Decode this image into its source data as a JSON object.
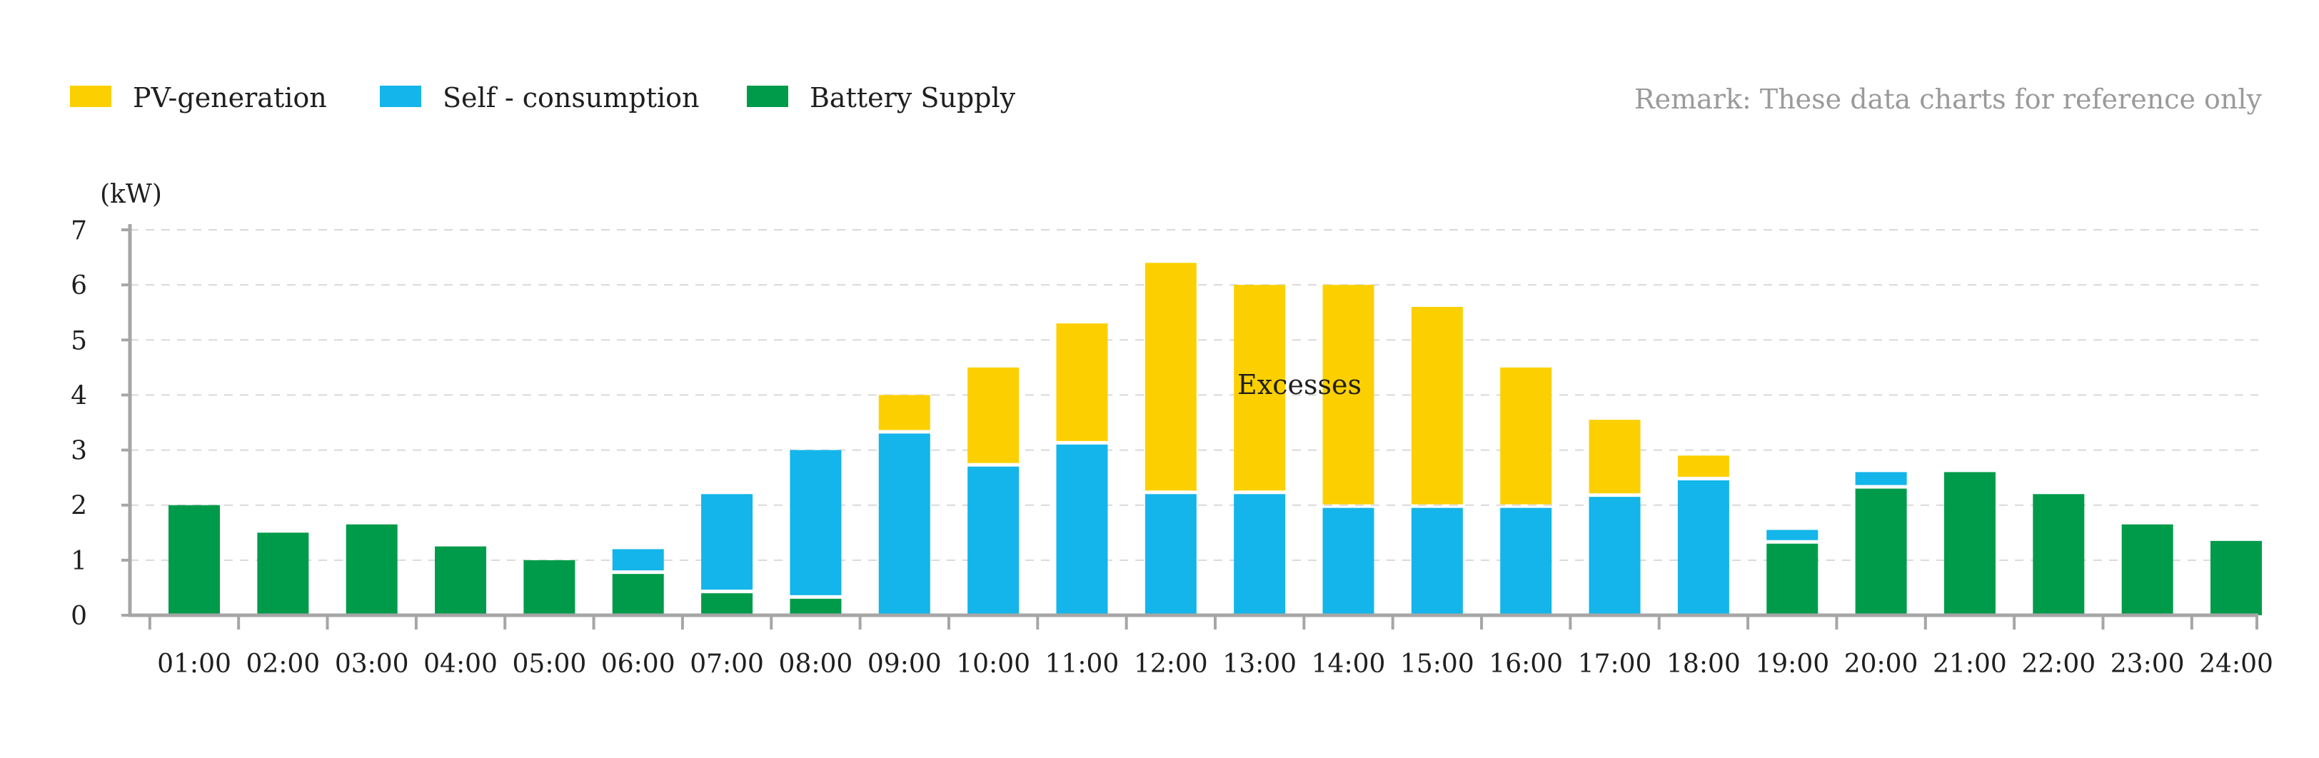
{
  "legend": {
    "items": [
      {
        "label": "PV-generation",
        "color": "#FCD000"
      },
      {
        "label": "Self - consumption",
        "color": "#13B5EA"
      },
      {
        "label": "Battery Supply",
        "color": "#009B4A"
      }
    ]
  },
  "remark": "Remark:  These data charts  for reference only",
  "chart_data": {
    "type": "bar",
    "stacked": true,
    "unit": "(kW)",
    "annotation": "Excesses",
    "categories": [
      "01:00",
      "02:00",
      "03:00",
      "04:00",
      "05:00",
      "06:00",
      "07:00",
      "08:00",
      "09:00",
      "10:00",
      "11:00",
      "12:00",
      "13:00",
      "14:00",
      "15:00",
      "16:00",
      "17:00",
      "18:00",
      "19:00",
      "20:00",
      "21:00",
      "22:00",
      "23:00",
      "24:00"
    ],
    "ylim": [
      0,
      7
    ],
    "yticks": [
      0,
      1,
      2,
      3,
      4,
      5,
      6,
      7
    ],
    "grid": true,
    "legend_position": "top-left",
    "series": [
      {
        "name": "Battery Supply",
        "color": "#009B4A",
        "values": [
          2.0,
          1.5,
          1.65,
          1.25,
          1.0,
          0.75,
          0.4,
          0.3,
          0,
          0,
          0,
          0,
          0,
          0,
          0,
          0,
          0,
          0,
          1.3,
          2.3,
          2.6,
          2.2,
          1.65,
          1.35
        ]
      },
      {
        "name": "Self - consumption",
        "color": "#13B5EA",
        "values": [
          0,
          0,
          0,
          0,
          0,
          0.45,
          1.8,
          2.7,
          3.3,
          2.7,
          3.1,
          2.2,
          2.2,
          1.95,
          1.95,
          1.95,
          2.15,
          2.45,
          0.25,
          0.3,
          0,
          0,
          0,
          0
        ]
      },
      {
        "name": "PV-generation",
        "color": "#FCD000",
        "values": [
          0,
          0,
          0,
          0,
          0,
          0,
          0,
          0,
          0.7,
          1.8,
          2.2,
          4.2,
          3.8,
          4.05,
          3.65,
          2.55,
          1.4,
          0.45,
          0,
          0,
          0,
          0,
          0,
          0
        ]
      }
    ]
  }
}
